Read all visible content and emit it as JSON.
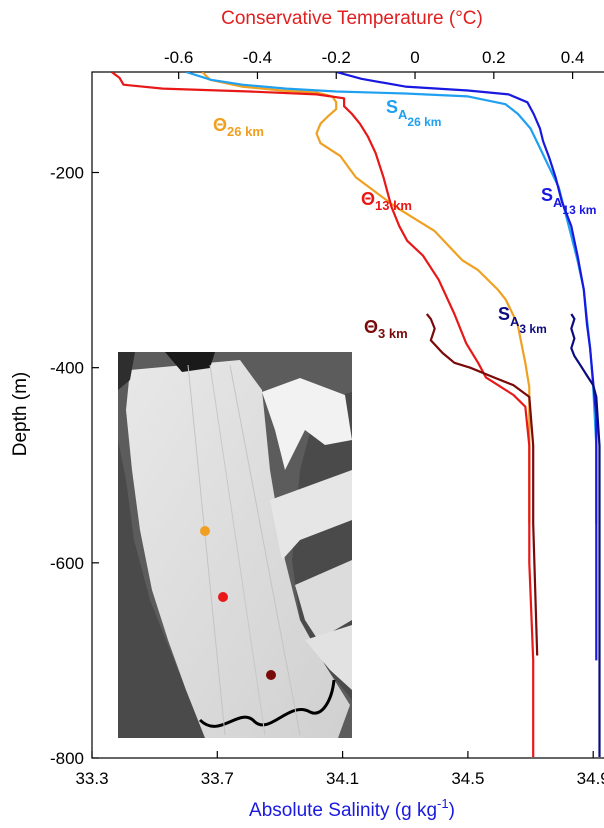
{
  "chart_data": {
    "type": "line",
    "top_axis": {
      "label": "Conservative Temperature (°C)",
      "color": "#e02020",
      "range": [
        -0.82,
        0.5
      ],
      "ticks": [
        -0.6,
        -0.4,
        -0.2,
        0,
        0.2,
        0.4
      ],
      "tick_labels": [
        "-0.6",
        "-0.4",
        "-0.2",
        "0",
        "0.2",
        "0.4"
      ]
    },
    "bottom_axis": {
      "label": "Absolute Salinity (g kg",
      "label_sup": "-1",
      "label_close": ")",
      "color": "#1a1adf",
      "range": [
        33.3,
        34.96
      ],
      "ticks": [
        33.3,
        33.7,
        34.1,
        34.5,
        34.9
      ],
      "tick_labels": [
        "33.3",
        "33.7",
        "34.1",
        "34.5",
        "34.9"
      ]
    },
    "y_axis": {
      "label": "Depth (m)",
      "range": [
        -800,
        -97
      ],
      "ticks": [
        -200,
        -400,
        -600,
        -800
      ],
      "tick_labels": [
        "-200",
        "-400",
        "-600",
        "-800"
      ]
    },
    "series": [
      {
        "key": "theta_26",
        "name": "Θ",
        "subscript": "26 km",
        "color": "#f0a020",
        "axis": "top",
        "points": [
          [
            -0.54,
            -97
          ],
          [
            -0.52,
            -105
          ],
          [
            -0.44,
            -112
          ],
          [
            -0.34,
            -116
          ],
          [
            -0.25,
            -118
          ],
          [
            -0.21,
            -122
          ],
          [
            -0.2,
            -128
          ],
          [
            -0.2,
            -135
          ],
          [
            -0.22,
            -142
          ],
          [
            -0.24,
            -150
          ],
          [
            -0.25,
            -160
          ],
          [
            -0.24,
            -170
          ],
          [
            -0.19,
            -183
          ],
          [
            -0.15,
            -205
          ],
          [
            -0.05,
            -235
          ],
          [
            0.05,
            -260
          ],
          [
            0.12,
            -290
          ],
          [
            0.16,
            -300
          ],
          [
            0.21,
            -320
          ],
          [
            0.23,
            -330
          ],
          [
            0.26,
            -355
          ],
          [
            0.28,
            -395
          ],
          [
            0.29,
            -420
          ],
          [
            0.29,
            -460
          ],
          [
            0.29,
            -560
          ]
        ]
      },
      {
        "key": "theta_13",
        "name": "Θ",
        "subscript": "13 km",
        "color": "#e81818",
        "axis": "top",
        "points": [
          [
            -0.77,
            -97
          ],
          [
            -0.75,
            -103
          ],
          [
            -0.74,
            -110
          ],
          [
            -0.64,
            -114
          ],
          [
            -0.42,
            -117
          ],
          [
            -0.25,
            -120
          ],
          [
            -0.18,
            -124
          ],
          [
            -0.18,
            -132
          ],
          [
            -0.16,
            -140
          ],
          [
            -0.14,
            -150
          ],
          [
            -0.12,
            -163
          ],
          [
            -0.1,
            -180
          ],
          [
            -0.08,
            -205
          ],
          [
            -0.06,
            -235
          ],
          [
            -0.04,
            -255
          ],
          [
            -0.02,
            -270
          ],
          [
            0.02,
            -285
          ],
          [
            0.06,
            -310
          ],
          [
            0.1,
            -345
          ],
          [
            0.13,
            -375
          ],
          [
            0.16,
            -395
          ],
          [
            0.18,
            -410
          ],
          [
            0.25,
            -428
          ],
          [
            0.28,
            -440
          ],
          [
            0.29,
            -480
          ],
          [
            0.29,
            -600
          ],
          [
            0.3,
            -700
          ],
          [
            0.3,
            -800
          ]
        ]
      },
      {
        "key": "theta_3",
        "name": "Θ",
        "subscript": "3 km",
        "color": "#7a0a0a",
        "axis": "top",
        "points": [
          [
            0.03,
            -345
          ],
          [
            0.04,
            -350
          ],
          [
            0.05,
            -360
          ],
          [
            0.04,
            -372
          ],
          [
            0.07,
            -385
          ],
          [
            0.1,
            -395
          ],
          [
            0.14,
            -400
          ],
          [
            0.2,
            -410
          ],
          [
            0.25,
            -418
          ],
          [
            0.29,
            -430
          ],
          [
            0.3,
            -480
          ],
          [
            0.3,
            -560
          ],
          [
            0.31,
            -695
          ]
        ]
      },
      {
        "key": "sa_26",
        "name": "S",
        "subscript": "A",
        "subscript2": "26 km",
        "color": "#20a0f0",
        "axis": "bottom",
        "points": [
          [
            33.6,
            -97
          ],
          [
            33.68,
            -105
          ],
          [
            33.78,
            -110
          ],
          [
            33.92,
            -114
          ],
          [
            34.08,
            -117
          ],
          [
            34.3,
            -119
          ],
          [
            34.5,
            -122
          ],
          [
            34.62,
            -130
          ],
          [
            34.66,
            -140
          ],
          [
            34.7,
            -155
          ],
          [
            34.73,
            -175
          ],
          [
            34.76,
            -195
          ],
          [
            34.79,
            -215
          ],
          [
            34.81,
            -240
          ],
          [
            34.83,
            -265
          ],
          [
            34.85,
            -290
          ],
          [
            34.87,
            -320
          ],
          [
            34.88,
            -350
          ],
          [
            34.89,
            -380
          ],
          [
            34.9,
            -420
          ],
          [
            34.91,
            -480
          ],
          [
            34.91,
            -560
          ]
        ]
      },
      {
        "key": "sa_13",
        "name": "S",
        "subscript": "A",
        "subscript2": "13 km",
        "color": "#1818e0",
        "axis": "bottom",
        "points": [
          [
            34.08,
            -97
          ],
          [
            34.16,
            -104
          ],
          [
            34.3,
            -112
          ],
          [
            34.5,
            -116
          ],
          [
            34.63,
            -120
          ],
          [
            34.69,
            -128
          ],
          [
            34.71,
            -140
          ],
          [
            34.73,
            -155
          ],
          [
            34.74,
            -168
          ],
          [
            34.76,
            -185
          ],
          [
            34.78,
            -205
          ],
          [
            34.8,
            -230
          ],
          [
            34.83,
            -255
          ],
          [
            34.85,
            -285
          ],
          [
            34.87,
            -320
          ],
          [
            34.88,
            -355
          ],
          [
            34.89,
            -380
          ],
          [
            34.9,
            -415
          ],
          [
            34.91,
            -450
          ],
          [
            34.91,
            -600
          ],
          [
            34.91,
            -700
          ]
        ]
      },
      {
        "key": "sa_3",
        "name": "S",
        "subscript": "A",
        "subscript2": "3 km",
        "color": "#0c0c80",
        "axis": "bottom",
        "points": [
          [
            34.83,
            -345
          ],
          [
            34.84,
            -350
          ],
          [
            34.83,
            -360
          ],
          [
            34.84,
            -370
          ],
          [
            34.83,
            -380
          ],
          [
            34.84,
            -388
          ],
          [
            34.86,
            -398
          ],
          [
            34.88,
            -408
          ],
          [
            34.9,
            -418
          ],
          [
            34.91,
            -430
          ],
          [
            34.92,
            -480
          ],
          [
            34.92,
            -600
          ],
          [
            34.92,
            -800
          ]
        ]
      }
    ],
    "inset": {
      "markers": [
        {
          "key": "m26",
          "color": "#f0a020"
        },
        {
          "key": "m13",
          "color": "#e81818"
        },
        {
          "key": "m3",
          "color": "#7a0a0a"
        }
      ]
    }
  }
}
